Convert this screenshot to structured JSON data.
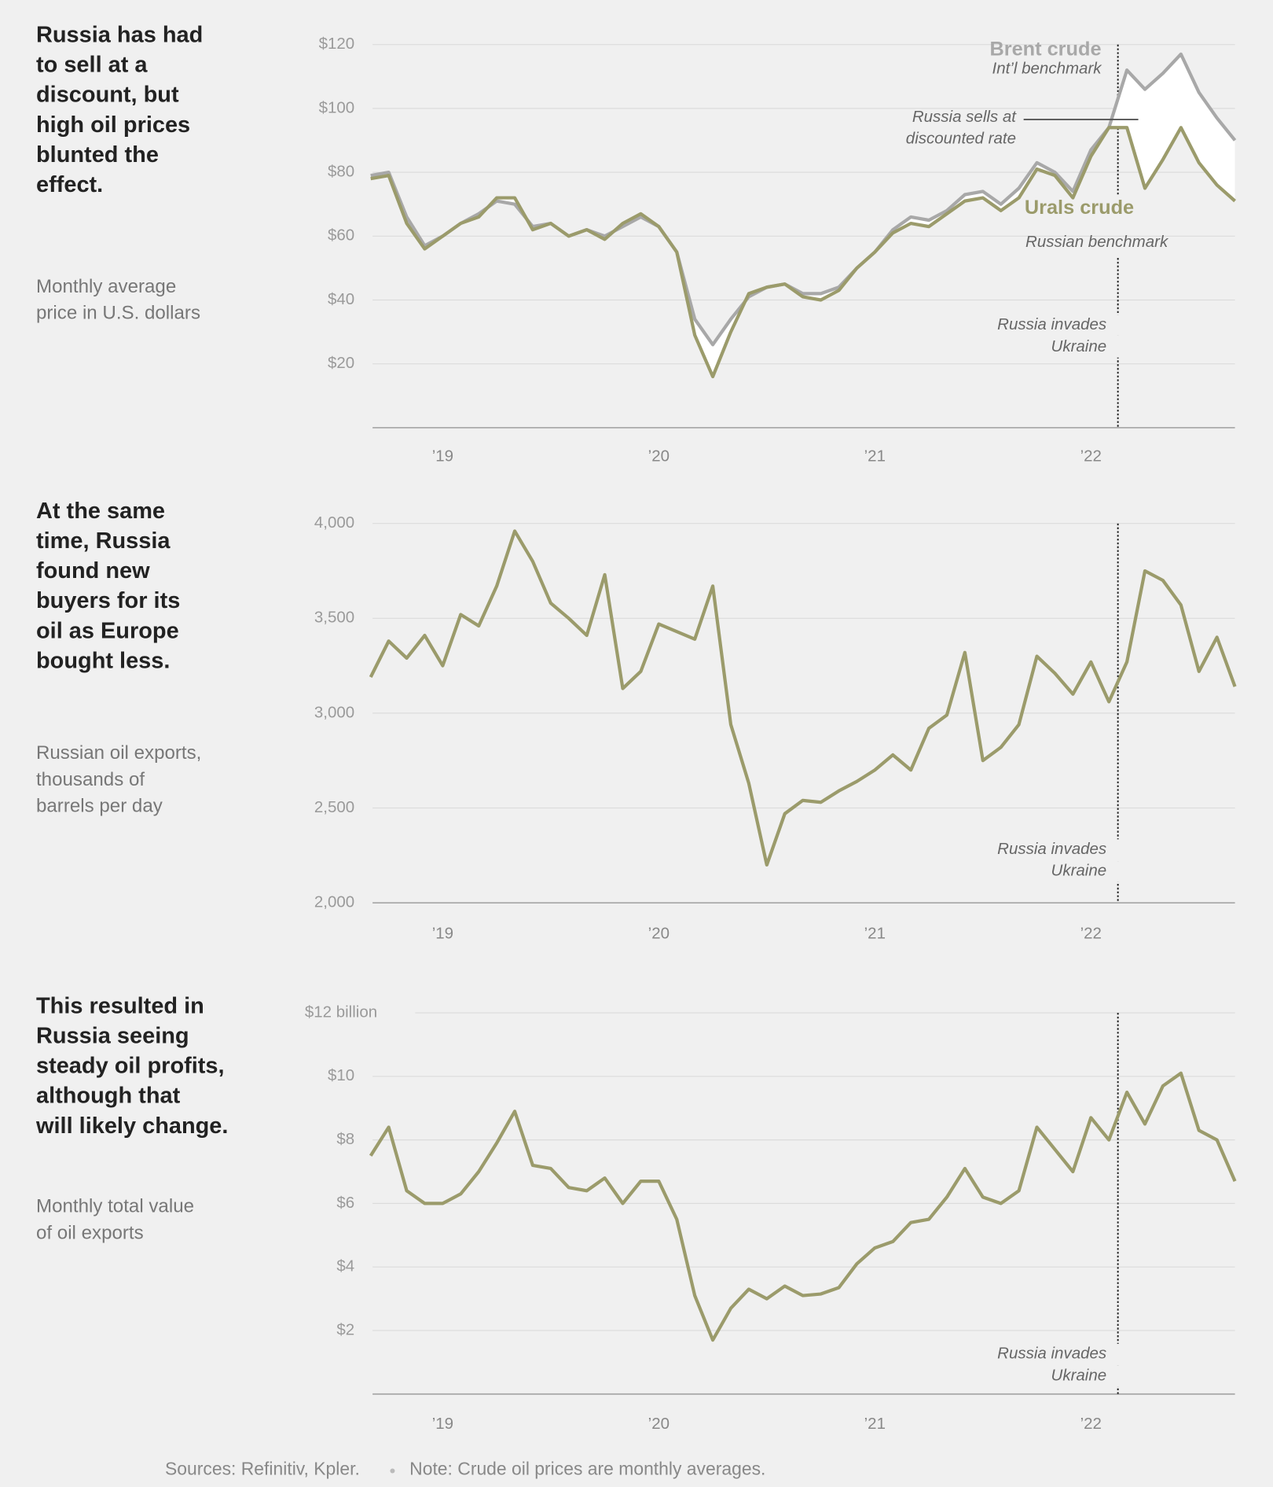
{
  "chart_data": [
    {
      "type": "line",
      "title": [
        "Russia has had",
        "to sell at a",
        "discount, but",
        "high oil prices",
        "blunted the",
        "effect."
      ],
      "subtitle": [
        "Monthly average",
        "price in U.S. dollars"
      ],
      "categories": [
        null,
        null,
        null,
        null,
        "’19",
        null,
        null,
        null,
        null,
        null,
        null,
        null,
        null,
        null,
        null,
        null,
        "’20",
        null,
        null,
        null,
        null,
        null,
        null,
        null,
        null,
        null,
        null,
        null,
        "’21",
        null,
        null,
        null,
        null,
        null,
        null,
        null,
        null,
        null,
        null,
        null,
        "’22",
        null,
        null,
        null,
        null,
        null,
        null,
        null,
        null
      ],
      "series": [
        {
          "name": "Brent crude",
          "note": "Int’l benchmark",
          "color": "#a8a8a8",
          "values": [
            79,
            80,
            66,
            57,
            60,
            64,
            67,
            71,
            70,
            63,
            64,
            60,
            62,
            60,
            63,
            66,
            63,
            55,
            34,
            26,
            34,
            41,
            44,
            45,
            42,
            42,
            44,
            50,
            55,
            62,
            66,
            65,
            68,
            73,
            74,
            70,
            75,
            83,
            80,
            74,
            87,
            94,
            112,
            106,
            111,
            117,
            105,
            97,
            90
          ]
        },
        {
          "name": "Urals crude",
          "note": "Russian benchmark",
          "color": "#9b9b6b",
          "values": [
            78,
            79,
            64,
            56,
            60,
            64,
            66,
            72,
            72,
            62,
            64,
            60,
            62,
            59,
            64,
            67,
            63,
            55,
            29,
            16,
            30,
            42,
            44,
            45,
            41,
            40,
            43,
            50,
            55,
            61,
            64,
            63,
            67,
            71,
            72,
            68,
            72,
            81,
            79,
            72,
            85,
            94,
            94,
            75,
            84,
            94,
            83,
            76,
            71
          ]
        }
      ],
      "annotation": [
        "Russia sells at",
        "discounted rate"
      ],
      "event": {
        "lines": [
          "Russia invades",
          "Ukraine"
        ],
        "index": 41.5
      },
      "ylim": [
        0,
        120
      ],
      "yticks": [
        {
          "value": 20,
          "label": "$20"
        },
        {
          "value": 40,
          "label": "$40"
        },
        {
          "value": 60,
          "label": "$60"
        },
        {
          "value": 80,
          "label": "$80"
        },
        {
          "value": 100,
          "label": "$100"
        },
        {
          "value": 120,
          "label": "$120"
        }
      ],
      "grid": true
    },
    {
      "type": "line",
      "title": [
        "At the same",
        "time, Russia",
        "found new",
        "buyers for its",
        "oil as Europe",
        "bought less."
      ],
      "subtitle": [
        "Russian oil exports,",
        "thousands of",
        "barrels per day"
      ],
      "categories": [
        null,
        null,
        null,
        null,
        "’19",
        null,
        null,
        null,
        null,
        null,
        null,
        null,
        null,
        null,
        null,
        null,
        "’20",
        null,
        null,
        null,
        null,
        null,
        null,
        null,
        null,
        null,
        null,
        null,
        "’21",
        null,
        null,
        null,
        null,
        null,
        null,
        null,
        null,
        null,
        null,
        null,
        "’22",
        null,
        null,
        null,
        null,
        null,
        null,
        null,
        null
      ],
      "color": "#9b9b6b",
      "values": [
        3190,
        3380,
        3290,
        3410,
        3250,
        3520,
        3460,
        3670,
        3960,
        3800,
        3580,
        3500,
        3410,
        3730,
        3130,
        3220,
        3470,
        3430,
        3390,
        3670,
        2940,
        2630,
        2200,
        2470,
        2540,
        2530,
        2590,
        2640,
        2700,
        2780,
        2700,
        2920,
        2990,
        3320,
        2750,
        2820,
        2940,
        3300,
        3210,
        3100,
        3270,
        3060,
        3270,
        3750,
        3700,
        3570,
        3220,
        3400,
        3140
      ],
      "event": {
        "lines": [
          "Russia invades",
          "Ukraine"
        ],
        "index": 41.5
      },
      "ylim": [
        2000,
        4000
      ],
      "yticks": [
        {
          "value": 2000,
          "label": "2,000"
        },
        {
          "value": 2500,
          "label": "2,500"
        },
        {
          "value": 3000,
          "label": "3,000"
        },
        {
          "value": 3500,
          "label": "3,500"
        },
        {
          "value": 4000,
          "label": "4,000"
        }
      ],
      "grid": true
    },
    {
      "type": "line",
      "title": [
        "This resulted in",
        "Russia seeing",
        "steady oil profits,",
        "although that",
        "will likely change."
      ],
      "subtitle": [
        "Monthly total value",
        "of oil exports"
      ],
      "categories": [
        null,
        null,
        null,
        null,
        "’19",
        null,
        null,
        null,
        null,
        null,
        null,
        null,
        null,
        null,
        null,
        null,
        "’20",
        null,
        null,
        null,
        null,
        null,
        null,
        null,
        null,
        null,
        null,
        null,
        "’21",
        null,
        null,
        null,
        null,
        null,
        null,
        null,
        null,
        null,
        null,
        null,
        "’22",
        null,
        null,
        null,
        null,
        null,
        null,
        null,
        null
      ],
      "color": "#9b9b6b",
      "values": [
        7.5,
        8.4,
        6.4,
        6.0,
        6.0,
        6.3,
        7.0,
        7.9,
        8.9,
        7.2,
        7.1,
        6.5,
        6.4,
        6.8,
        6.0,
        6.7,
        6.7,
        5.5,
        3.1,
        1.7,
        2.7,
        3.3,
        3.0,
        3.4,
        3.1,
        3.15,
        3.35,
        4.1,
        4.6,
        4.8,
        5.4,
        5.5,
        6.2,
        7.1,
        6.2,
        6.0,
        6.4,
        8.4,
        7.7,
        7.0,
        8.7,
        8.0,
        9.5,
        8.5,
        9.7,
        10.1,
        8.3,
        8.0,
        6.7
      ],
      "event": {
        "lines": [
          "Russia invades",
          "Ukraine"
        ],
        "index": 41.5
      },
      "ylim": [
        0,
        12
      ],
      "yticks": [
        {
          "value": 2,
          "label": "$2"
        },
        {
          "value": 4,
          "label": "$4"
        },
        {
          "value": 6,
          "label": "$6"
        },
        {
          "value": 8,
          "label": "$8"
        },
        {
          "value": 10,
          "label": "$10"
        },
        {
          "value": 12,
          "label": "$12 billion"
        }
      ],
      "grid": true
    }
  ],
  "footer": {
    "sources": "Sources: Refinitiv, Kpler.",
    "note": "Note: Crude oil prices are monthly averages."
  }
}
